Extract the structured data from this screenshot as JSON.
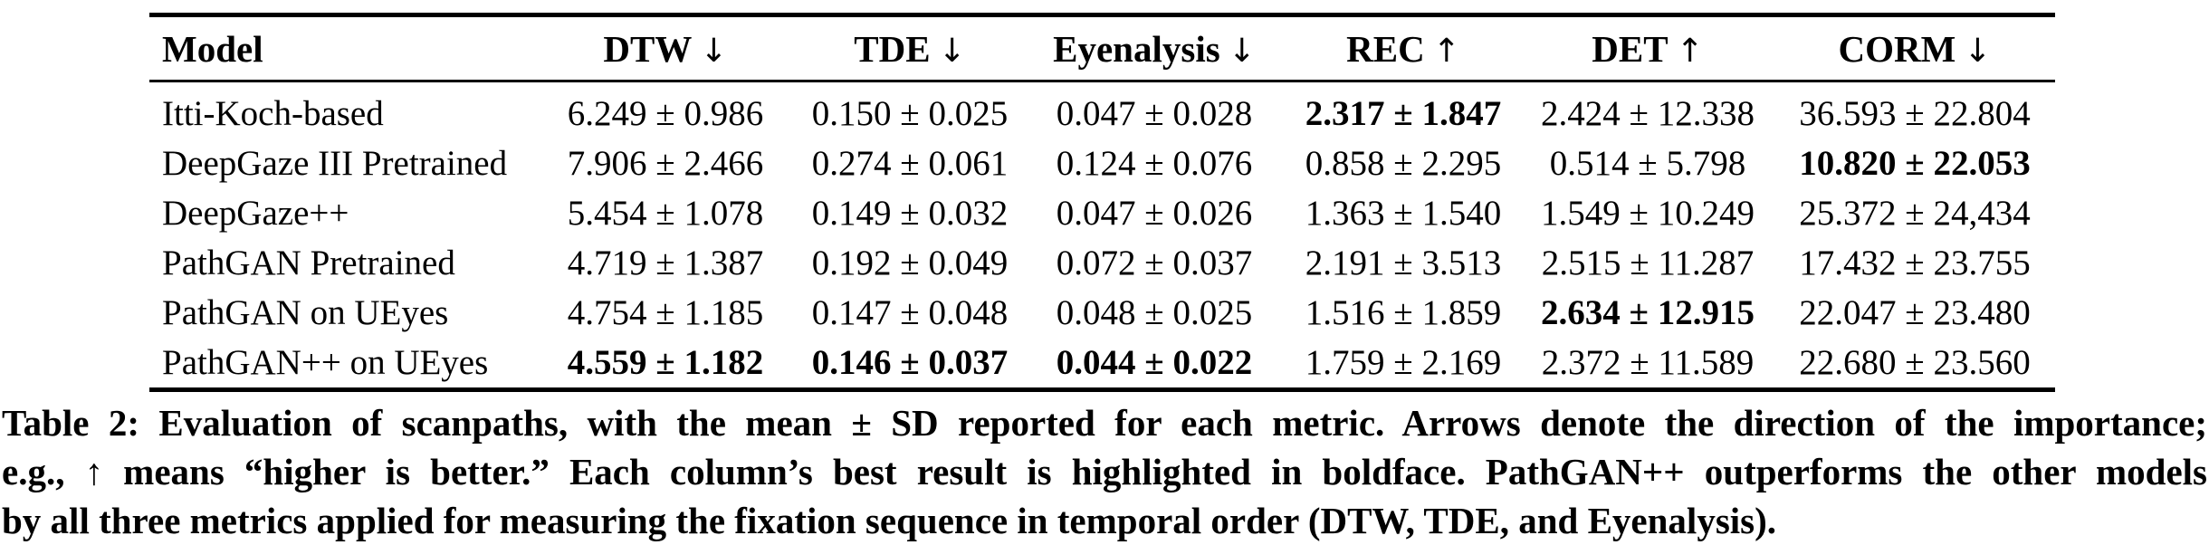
{
  "table": {
    "columns": [
      {
        "label": "Model",
        "arrow": ""
      },
      {
        "label": "DTW",
        "arrow": "↓"
      },
      {
        "label": "TDE",
        "arrow": "↓"
      },
      {
        "label": "Eyenalysis",
        "arrow": "↓"
      },
      {
        "label": "REC",
        "arrow": "↑"
      },
      {
        "label": "DET",
        "arrow": "↑"
      },
      {
        "label": "CORM",
        "arrow": "↓"
      }
    ],
    "rows": [
      {
        "model": "Itti-Koch-based",
        "cells": [
          {
            "text": "6.249 ± 0.986",
            "bold": false
          },
          {
            "text": "0.150 ± 0.025",
            "bold": false
          },
          {
            "text": "0.047 ± 0.028",
            "bold": false
          },
          {
            "text": "2.317 ± 1.847",
            "bold": true
          },
          {
            "text": "2.424 ± 12.338",
            "bold": false
          },
          {
            "text": "36.593 ± 22.804",
            "bold": false
          }
        ]
      },
      {
        "model": "DeepGaze III Pretrained",
        "cells": [
          {
            "text": "7.906 ± 2.466",
            "bold": false
          },
          {
            "text": "0.274 ± 0.061",
            "bold": false
          },
          {
            "text": "0.124 ± 0.076",
            "bold": false
          },
          {
            "text": "0.858 ± 2.295",
            "bold": false
          },
          {
            "text": "0.514 ± 5.798",
            "bold": false
          },
          {
            "text": "10.820 ± 22.053",
            "bold": true
          }
        ]
      },
      {
        "model": "DeepGaze++",
        "cells": [
          {
            "text": "5.454 ± 1.078",
            "bold": false
          },
          {
            "text": "0.149 ± 0.032",
            "bold": false
          },
          {
            "text": "0.047 ± 0.026",
            "bold": false
          },
          {
            "text": "1.363 ± 1.540",
            "bold": false
          },
          {
            "text": "1.549 ± 10.249",
            "bold": false
          },
          {
            "text": "25.372 ± 24,434",
            "bold": false
          }
        ]
      },
      {
        "model": "PathGAN Pretrained",
        "cells": [
          {
            "text": "4.719 ± 1.387",
            "bold": false
          },
          {
            "text": "0.192 ± 0.049",
            "bold": false
          },
          {
            "text": "0.072 ± 0.037",
            "bold": false
          },
          {
            "text": "2.191 ± 3.513",
            "bold": false
          },
          {
            "text": "2.515 ± 11.287",
            "bold": false
          },
          {
            "text": "17.432 ± 23.755",
            "bold": false
          }
        ]
      },
      {
        "model": "PathGAN on UEyes",
        "cells": [
          {
            "text": "4.754 ± 1.185",
            "bold": false
          },
          {
            "text": "0.147 ± 0.048",
            "bold": false
          },
          {
            "text": "0.048 ± 0.025",
            "bold": false
          },
          {
            "text": "1.516 ± 1.859",
            "bold": false
          },
          {
            "text": "2.634 ± 12.915",
            "bold": true
          },
          {
            "text": "22.047 ± 23.480",
            "bold": false
          }
        ]
      },
      {
        "model": "PathGAN++ on UEyes",
        "cells": [
          {
            "text": "4.559 ± 1.182",
            "bold": true
          },
          {
            "text": "0.146 ± 0.037",
            "bold": true
          },
          {
            "text": "0.044 ± 0.022",
            "bold": true
          },
          {
            "text": "1.759 ± 2.169",
            "bold": false
          },
          {
            "text": "2.372 ± 11.589",
            "bold": false
          },
          {
            "text": "22.680 ± 23.560",
            "bold": false
          }
        ]
      }
    ]
  },
  "caption": {
    "lines": [
      "Table 2: Evaluation of scanpaths, with the mean ± SD reported for each metric. Arrows denote the direction of the importance;",
      "e.g., ↑ means “higher is better.” Each column’s best result is highlighted in boldface. PathGAN++ outperforms the other models",
      "by all three metrics applied for measuring the fixation sequence in temporal order (DTW, TDE, and Eyenalysis)."
    ]
  }
}
